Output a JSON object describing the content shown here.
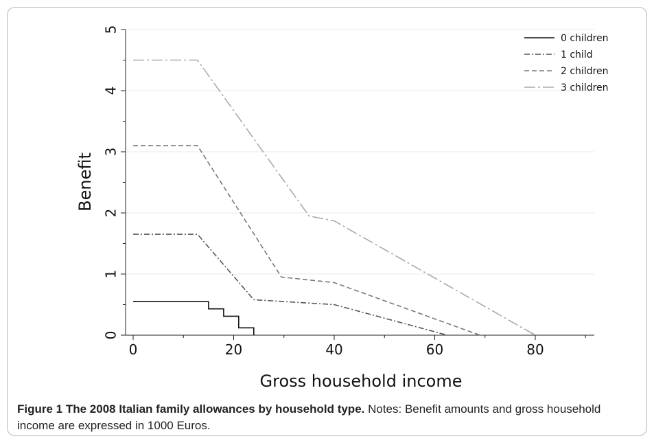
{
  "chart_data": {
    "type": "line",
    "xlabel": "Gross household income",
    "ylabel": "Benefit",
    "xlim": [
      0,
      91
    ],
    "ylim": [
      0,
      5
    ],
    "x_ticks": [
      0,
      20,
      40,
      60,
      80
    ],
    "y_ticks": [
      0,
      1,
      2,
      3,
      4,
      5
    ],
    "grid": true,
    "legend_position": "top-right",
    "series": [
      {
        "name": "0 children",
        "dash": "solid",
        "color": "#111111",
        "points": [
          [
            0,
            0.55
          ],
          [
            15,
            0.55
          ],
          [
            15,
            0.43
          ],
          [
            18,
            0.43
          ],
          [
            18,
            0.31
          ],
          [
            21,
            0.31
          ],
          [
            21,
            0.12
          ],
          [
            24,
            0.12
          ],
          [
            24,
            0
          ]
        ]
      },
      {
        "name": "1 child",
        "dash": "dash-dot",
        "color": "#555555",
        "points": [
          [
            0,
            1.65
          ],
          [
            12.8,
            1.65
          ],
          [
            24,
            0.58
          ],
          [
            40,
            0.5
          ],
          [
            62.5,
            0
          ]
        ]
      },
      {
        "name": "2 children",
        "dash": "dashed",
        "color": "#777777",
        "points": [
          [
            0,
            3.1
          ],
          [
            12.8,
            3.1
          ],
          [
            29.5,
            0.95
          ],
          [
            40,
            0.86
          ],
          [
            69,
            0
          ]
        ]
      },
      {
        "name": "3 children",
        "dash": "long-dash-dot",
        "color": "#aaaaaa",
        "points": [
          [
            0,
            4.5
          ],
          [
            12.8,
            4.5
          ],
          [
            35,
            1.95
          ],
          [
            40,
            1.87
          ],
          [
            80,
            0
          ]
        ]
      }
    ]
  },
  "caption": {
    "title": "Figure 1 The 2008 Italian family allowances by household type.",
    "text": " Notes: Benefit amounts and gross household income are expressed in 1000 Euros."
  }
}
